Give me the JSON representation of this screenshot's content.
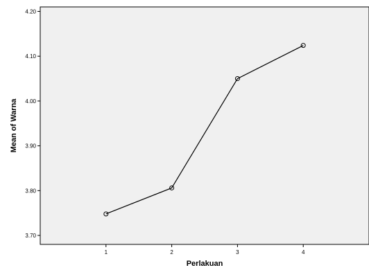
{
  "chart_data": {
    "type": "line",
    "xlabel": "Perlakuan",
    "ylabel": "Mean of Warna",
    "x": [
      1,
      2,
      3,
      4
    ],
    "xlim": [
      0,
      5
    ],
    "ylim": [
      3.68,
      4.21
    ],
    "yticks": [
      "3.70",
      "3.80",
      "3.90",
      "4.00",
      "4.10",
      "4.20"
    ],
    "xticks": [
      "1",
      "2",
      "3",
      "4"
    ],
    "series": [
      {
        "values": [
          3.748,
          3.806,
          4.05,
          4.124
        ]
      }
    ],
    "marker": "open-circle",
    "grid": false,
    "colors": {
      "plot_background": "#f0f0f0",
      "line": "#000000"
    }
  }
}
